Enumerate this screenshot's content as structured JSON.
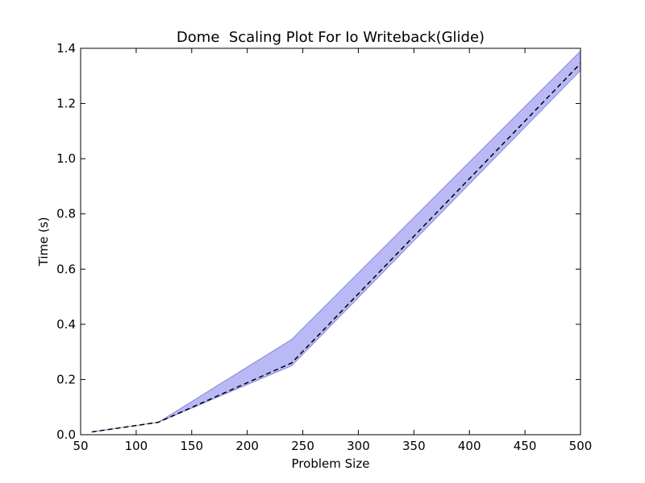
{
  "chart_data": {
    "type": "line",
    "title": "Dome  Scaling Plot For Io Writeback(Glide)",
    "xlabel": "Problem Size",
    "ylabel": "Time (s)",
    "xlim": [
      50,
      500
    ],
    "ylim": [
      0.0,
      1.4
    ],
    "xticks": [
      50,
      100,
      150,
      200,
      250,
      300,
      350,
      400,
      450,
      500
    ],
    "yticks": [
      0.0,
      0.2,
      0.4,
      0.6,
      0.8,
      1.0,
      1.2,
      1.4
    ],
    "xtick_labels": [
      "50",
      "100",
      "150",
      "200",
      "250",
      "300",
      "350",
      "400",
      "450",
      "500"
    ],
    "ytick_labels": [
      "0.0",
      "0.2",
      "0.4",
      "0.6",
      "0.8",
      "1.0",
      "1.2",
      "1.4"
    ],
    "grid": false,
    "x": [
      60,
      120,
      240,
      500
    ],
    "series": [
      {
        "style": "dashed",
        "color": "#000000",
        "values": [
          0.01,
          0.045,
          0.26,
          1.345
        ]
      }
    ],
    "band": {
      "color": "#b9b9f6",
      "edge_color": "#8a8ad8",
      "lower": [
        0.01,
        0.045,
        0.25,
        1.32
      ],
      "upper": [
        0.01,
        0.045,
        0.345,
        1.39
      ]
    }
  }
}
